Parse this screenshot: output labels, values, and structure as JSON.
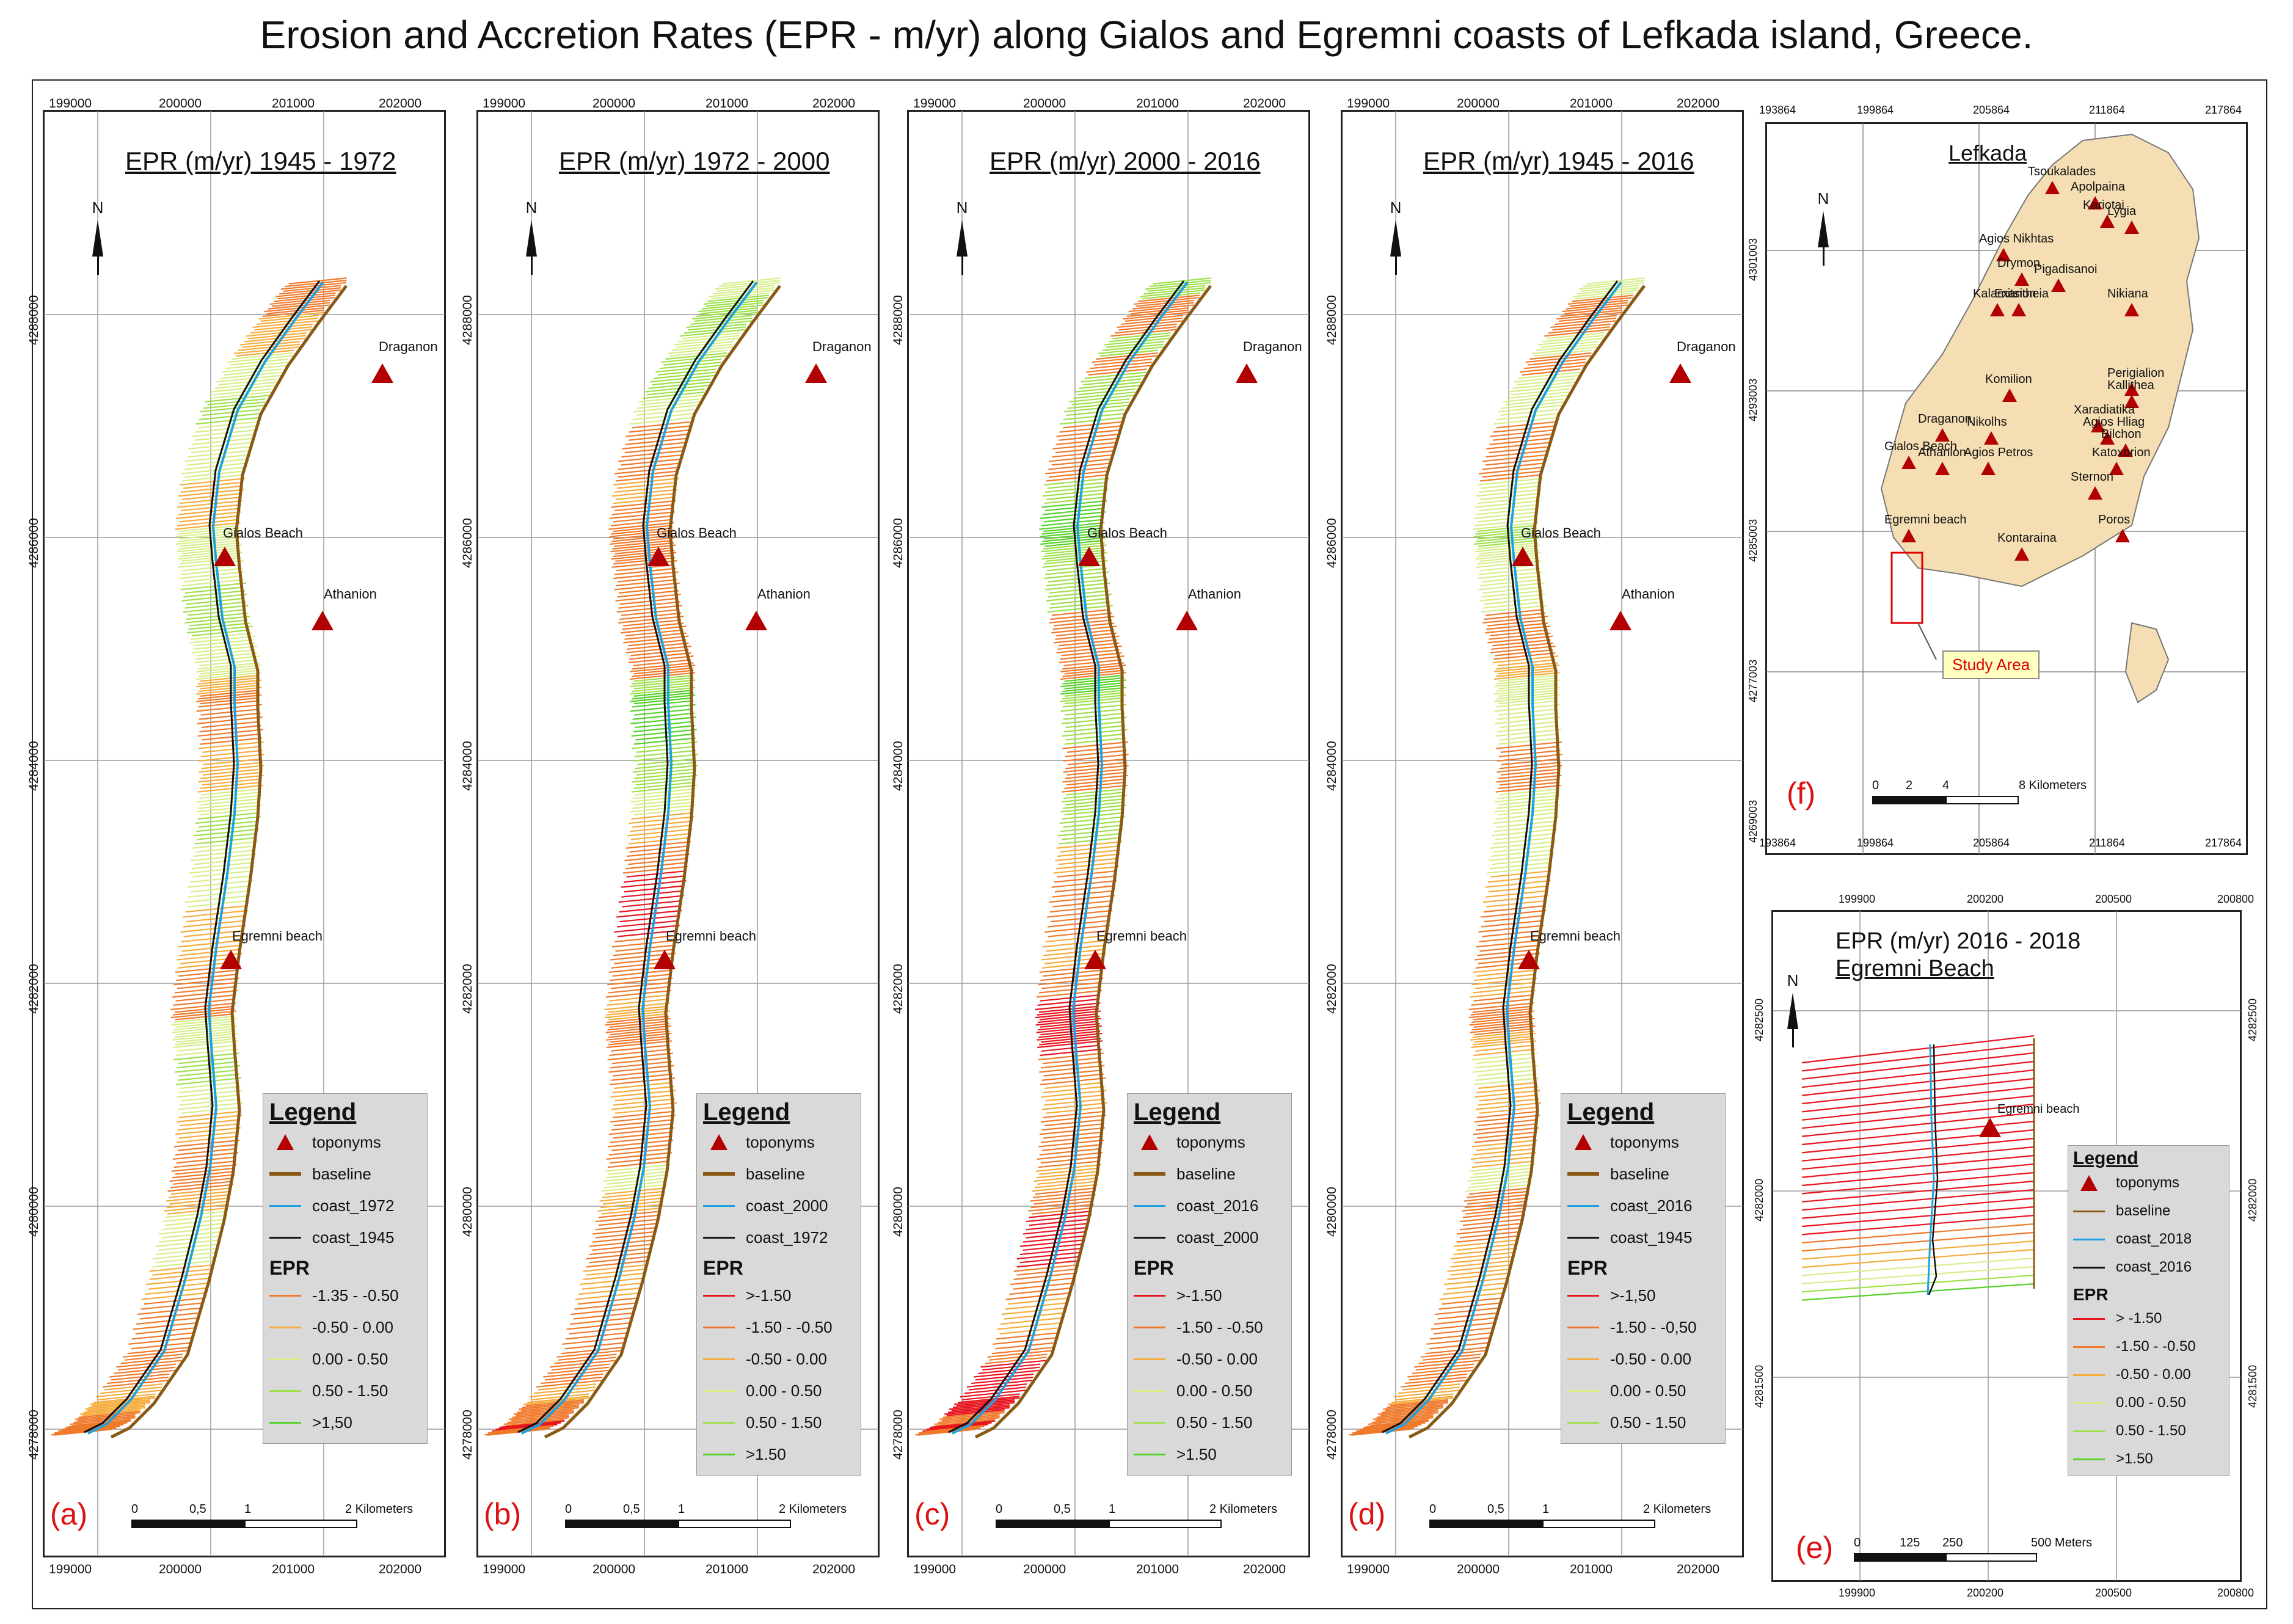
{
  "title": "Erosion and Accretion Rates (EPR - m/yr) along Gialos and Egremni coasts of Lefkada island, Greece.",
  "colors": {
    "baseline": "#8a5a14",
    "coast_old": "#111111",
    "coast_new": "#1ea1e0",
    "toponym": "#b30000",
    "epr_strong_erosion": "#e8141e",
    "epr_erosion": "#f07a2c",
    "epr_mild_erosion": "#f6ac3c",
    "epr_stable": "#d7ee8a",
    "epr_accretion": "#9ee04b",
    "epr_strong_accretion": "#55d22a",
    "land": "#f5deb3"
  },
  "panels": [
    {
      "id": "a",
      "title": "EPR (m/yr) 1945 - 1972",
      "label": "(a)",
      "x_ticks": [
        "199000",
        "200000",
        "201000",
        "202000"
      ],
      "y_ticks": [
        "4278000",
        "4280000",
        "4282000",
        "4284000",
        "4286000",
        "4288000"
      ],
      "toponyms": [
        "Draganon",
        "Gialos Beach",
        "Athanion",
        "Egremni beach"
      ],
      "segment_classes": [
        "e",
        "e",
        "m",
        "m",
        "s",
        "s",
        "a",
        "s",
        "s",
        "m",
        "m",
        "s",
        "s",
        "s",
        "a",
        "a",
        "s",
        "s",
        "m",
        "e",
        "e",
        "m",
        "m",
        "s",
        "a",
        "s",
        "s",
        "m",
        "m",
        "e",
        "e",
        "s",
        "s",
        "a",
        "s",
        "m",
        "e",
        "e",
        "m",
        "s",
        "s",
        "m",
        "e",
        "e",
        "e",
        "m",
        "m",
        "e",
        "e",
        "e"
      ],
      "legend": {
        "title": "Legend",
        "items": [
          "toponyms",
          "baseline",
          "coast_1972",
          "coast_1945"
        ],
        "epr_title": "EPR",
        "classes": [
          "-1.35 - -0.50",
          "-0.50 - 0.00",
          "0.00 - 0.50",
          "0.50 - 1.50",
          ">1,50"
        ]
      },
      "scale": {
        "labels": [
          "0",
          "0,5",
          "1",
          "2 Kilometers"
        ]
      }
    },
    {
      "id": "b",
      "title": "EPR (m/yr) 1972 - 2000",
      "label": "(b)",
      "x_ticks": [
        "199000",
        "200000",
        "201000",
        "202000"
      ],
      "y_ticks": [
        "4278000",
        "4280000",
        "4282000",
        "4284000",
        "4286000",
        "4288000"
      ],
      "toponyms": [
        "Draganon",
        "Gialos Beach",
        "Athanion",
        "Egremni beach"
      ],
      "segment_classes": [
        "s",
        "a",
        "a",
        "s",
        "a",
        "a",
        "s",
        "e",
        "e",
        "m",
        "e",
        "e",
        "e",
        "e",
        "e",
        "e",
        "e",
        "e",
        "a",
        "g",
        "g",
        "a",
        "a",
        "s",
        "m",
        "e",
        "r",
        "r",
        "e",
        "e",
        "m",
        "e",
        "e",
        "e",
        "m",
        "e",
        "e",
        "s",
        "m",
        "e",
        "e",
        "m",
        "e",
        "e",
        "e",
        "m",
        "e",
        "e",
        "r",
        "e"
      ],
      "legend": {
        "title": "Legend",
        "items": [
          "toponyms",
          "baseline",
          "coast_2000",
          "coast_1972"
        ],
        "epr_title": "EPR",
        "classes": [
          ">-1.50",
          "-1.50 - -0.50",
          "-0.50 - 0.00",
          "0.00 - 0.50",
          "0.50 - 1.50",
          ">1.50"
        ]
      },
      "scale": {
        "labels": [
          "0",
          "0,5",
          "1",
          "2 Kilometers"
        ]
      }
    },
    {
      "id": "c",
      "title": "EPR (m/yr) 2000 - 2016",
      "label": "(c)",
      "x_ticks": [
        "199000",
        "200000",
        "201000",
        "202000"
      ],
      "y_ticks": [
        "4278000",
        "4280000",
        "4282000",
        "4284000",
        "4286000",
        "4288000"
      ],
      "toponyms": [
        "Draganon",
        "Gialos Beach",
        "Athanion",
        "Egremni beach"
      ],
      "segment_classes": [
        "a",
        "e",
        "e",
        "a",
        "e",
        "a",
        "a",
        "e",
        "e",
        "a",
        "g",
        "g",
        "a",
        "a",
        "a",
        "e",
        "e",
        "e",
        "g",
        "a",
        "a",
        "e",
        "e",
        "a",
        "a",
        "m",
        "e",
        "e",
        "m",
        "e",
        "r",
        "r",
        "r",
        "e",
        "m",
        "e",
        "e",
        "m",
        "e",
        "r",
        "r",
        "e",
        "m",
        "e",
        "r",
        "r",
        "r",
        "e",
        "r",
        "e"
      ],
      "legend": {
        "title": "Legend",
        "items": [
          "toponyms",
          "baseline",
          "coast_2016",
          "coast_2000"
        ],
        "epr_title": "EPR",
        "classes": [
          ">-1.50",
          "-1.50 - -0.50",
          "-0.50 - 0.00",
          "0.00 - 0.50",
          "0.50 - 1.50",
          ">1.50"
        ]
      },
      "scale": {
        "labels": [
          "0",
          "0,5",
          "1",
          "2 Kilometers"
        ]
      }
    },
    {
      "id": "d",
      "title": "EPR (m/yr) 1945 - 2016",
      "label": "(d)",
      "x_ticks": [
        "199000",
        "200000",
        "201000",
        "202000"
      ],
      "y_ticks": [
        "4278000",
        "4280000",
        "4282000",
        "4284000",
        "4286000",
        "4288000"
      ],
      "toponyms": [
        "Draganon",
        "Gialos Beach",
        "Athanion",
        "Egremni beach"
      ],
      "segment_classes": [
        "s",
        "e",
        "e",
        "s",
        "e",
        "s",
        "s",
        "e",
        "e",
        "s",
        "s",
        "a",
        "s",
        "s",
        "s",
        "e",
        "e",
        "m",
        "s",
        "s",
        "s",
        "e",
        "e",
        "s",
        "s",
        "s",
        "m",
        "e",
        "e",
        "m",
        "e",
        "e",
        "m",
        "s",
        "m",
        "e",
        "m",
        "s",
        "e",
        "e",
        "m",
        "m",
        "e",
        "e",
        "e",
        "m",
        "e",
        "e",
        "e",
        "e"
      ],
      "legend": {
        "title": "Legend",
        "items": [
          "toponyms",
          "baseline",
          "coast_2016",
          "coast_1945"
        ],
        "epr_title": "EPR",
        "classes": [
          ">-1,50",
          "-1.50 - -0,50",
          "-0.50 - 0.00",
          "0.00 - 0.50",
          "0.50 - 1.50"
        ]
      },
      "scale": {
        "labels": [
          "0",
          "0,5",
          "1",
          "2 Kilometers"
        ]
      }
    }
  ],
  "inset_f": {
    "title": "Lefkada",
    "label": "(f)",
    "x_ticks": [
      "193864",
      "199864",
      "205864",
      "211864",
      "217864"
    ],
    "y_ticks": [
      "4269003",
      "4277003",
      "4285003",
      "4293003",
      "4301003"
    ],
    "places": [
      "Tsoukalades",
      "Apolpaina",
      "Kariotai",
      "Lygia",
      "Agios Nikhtas",
      "Drymon",
      "Pigadisanoi",
      "Kalamitsion",
      "Exantheia",
      "Nikiana",
      "Perigialion",
      "Komilion",
      "Kallithea",
      "Xaradiatika",
      "Draganon",
      "Nikolhs",
      "Agios Hliag",
      "Bilchon",
      "Gialos Beach",
      "Athanion",
      "Agios Petros",
      "Katoxorion",
      "Sternon",
      "Egremni beach",
      "Poros",
      "Kontaraina"
    ],
    "study_area": "Study Area",
    "scale": {
      "labels": [
        "0",
        "2",
        "4",
        "8 Kilometers"
      ]
    }
  },
  "inset_e": {
    "title_line1": "EPR (m/yr) 2016 - 2018",
    "title_line2": "Egremni Beach",
    "label": "(e)",
    "x_ticks": [
      "199900",
      "200200",
      "200500",
      "200800"
    ],
    "y_ticks": [
      "4281500",
      "4282000",
      "4282500"
    ],
    "toponym": "Egremni beach",
    "segment_classes": [
      "r",
      "r",
      "r",
      "r",
      "r",
      "r",
      "r",
      "r",
      "r",
      "r",
      "r",
      "r",
      "r",
      "r",
      "r",
      "r",
      "r",
      "r",
      "r",
      "r",
      "r",
      "r",
      "e",
      "e",
      "m",
      "m",
      "s",
      "s",
      "a",
      "g"
    ],
    "legend": {
      "title": "Legend",
      "items": [
        "toponyms",
        "baseline",
        "coast_2018",
        "coast_2016"
      ],
      "epr_title": "EPR",
      "classes": [
        "> -1.50",
        "-1.50 - -0.50",
        "-0.50 - 0.00",
        "0.00 - 0.50",
        "0.50 - 1.50",
        ">1.50"
      ]
    },
    "scale": {
      "labels": [
        "0",
        "125",
        "250",
        "500 Meters"
      ]
    }
  }
}
